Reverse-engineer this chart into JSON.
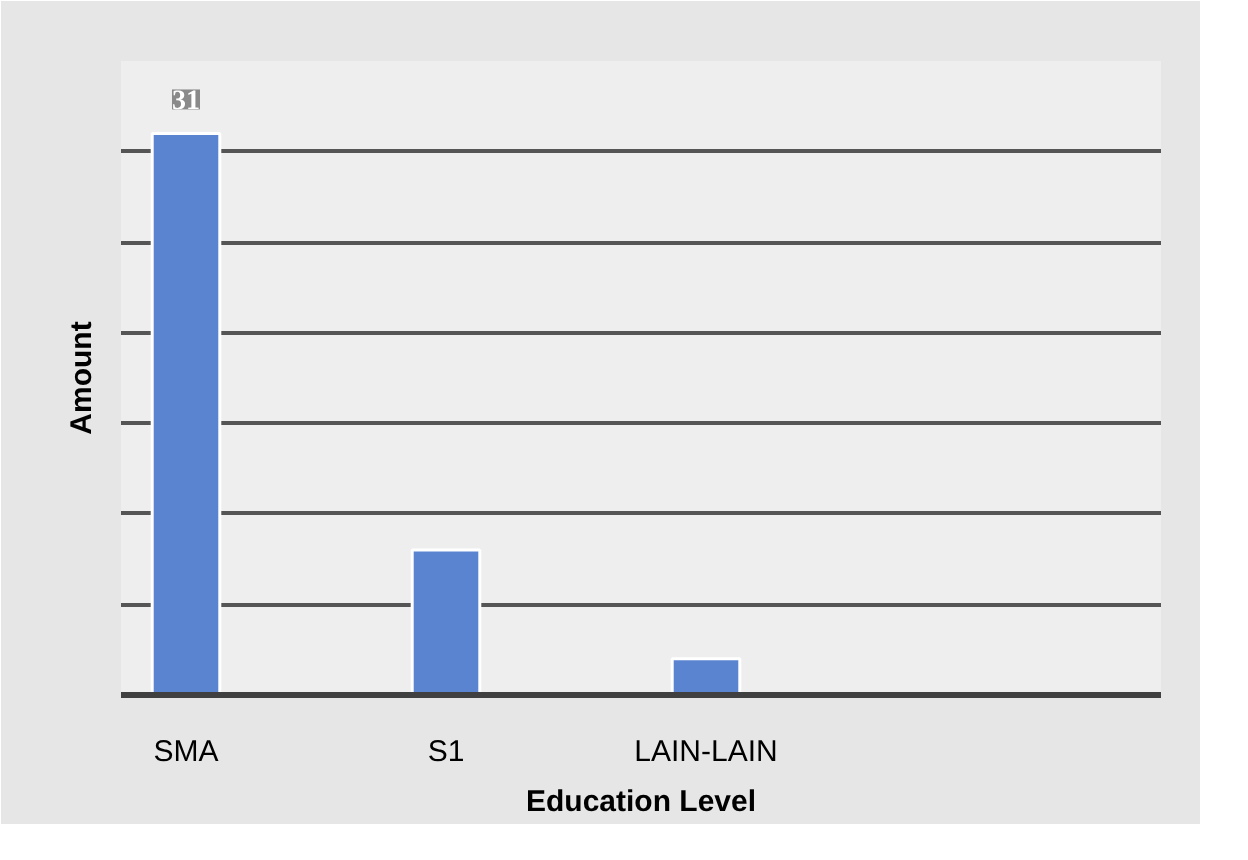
{
  "chart_data": {
    "type": "bar",
    "xlabel": "Education Level",
    "ylabel": "Amount",
    "categories": [
      "SMA",
      "S1",
      "LAIN-LAIN"
    ],
    "values": [
      31,
      8,
      2
    ],
    "value_labels": [
      "31",
      null,
      null
    ],
    "color": "#5b84d0",
    "ylim": [
      0,
      35
    ],
    "yticks": [
      {
        "value": 0,
        "label": null
      },
      {
        "value": 5,
        "label": null
      },
      {
        "value": 10,
        "label": null
      },
      {
        "value": 15,
        "label": null
      },
      {
        "value": 20,
        "label": null
      },
      {
        "value": 25,
        "label": null
      },
      {
        "value": 30,
        "label": null
      }
    ],
    "grid": "y"
  }
}
